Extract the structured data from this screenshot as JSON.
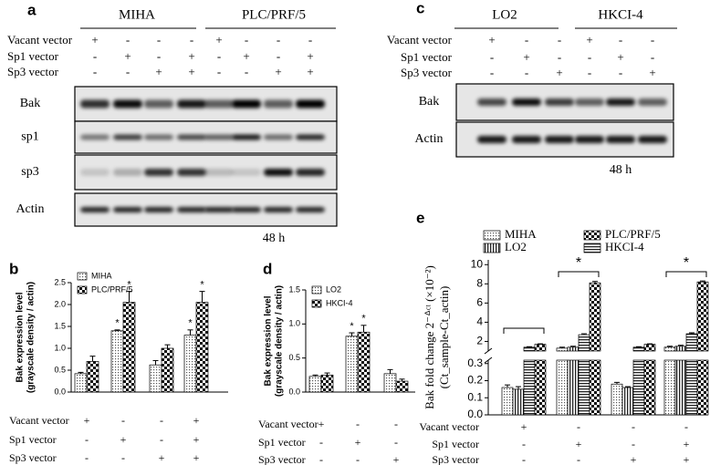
{
  "panels": [
    "a",
    "b",
    "c",
    "d",
    "e"
  ],
  "blot_a": {
    "groups": [
      "MIHA",
      "PLC/PRF/5"
    ],
    "rows": [
      "Vacant vector",
      "Sp1 vector",
      "Sp3 vector"
    ],
    "signs": [
      [
        "+",
        "-",
        "-",
        "-",
        "+",
        "-",
        "-",
        "-"
      ],
      [
        "-",
        "+",
        "-",
        "+",
        "-",
        "+",
        "-",
        "+"
      ],
      [
        "-",
        "-",
        "+",
        "+",
        "-",
        "-",
        "+",
        "+"
      ]
    ],
    "bands": [
      "Bak",
      "sp1",
      "sp3",
      "Actin"
    ],
    "time": "48 h"
  },
  "blot_c": {
    "groups": [
      "LO2",
      "HKCI-4"
    ],
    "rows": [
      "Vacant vector",
      "Sp1 vector",
      "Sp3 vector"
    ],
    "signs": [
      [
        "+",
        "-",
        "-",
        "+",
        "-",
        "-"
      ],
      [
        "-",
        "+",
        "-",
        "-",
        "+",
        "-"
      ],
      [
        "-",
        "-",
        "+",
        "-",
        "-",
        "+"
      ]
    ],
    "bands": [
      "Bak",
      "Actin"
    ],
    "time": "48 h"
  },
  "chart_data": [
    {
      "type": "bar",
      "ylabel": [
        "Bak expression level",
        "(grayscale density / actin)"
      ],
      "rows": [
        "Vacant vector",
        "Sp1 vector",
        "Sp3 vector"
      ],
      "conditions": [
        [
          "+",
          "-",
          "-",
          "+"
        ],
        [
          "-",
          "+",
          "-",
          "+"
        ],
        [
          "-",
          "-",
          "+",
          "+"
        ]
      ],
      "ylim": [
        0,
        2.5
      ],
      "yticks": [
        {
          "value": 0,
          "label": "0.0"
        },
        0.5,
        {
          "value": 1,
          "label": "1.0"
        },
        1.5,
        {
          "value": 2,
          "label": "2.0"
        },
        2.5
      ],
      "series": [
        {
          "name": "MIHA",
          "pattern": "dots",
          "values": [
            0.42,
            1.4,
            0.62,
            1.3
          ],
          "errors": [
            0.03,
            0.02,
            0.1,
            0.12
          ],
          "significance": [
            null,
            "*",
            null,
            "*"
          ]
        },
        {
          "name": "PLC/PRF/5",
          "pattern": "checker",
          "values": [
            0.7,
            2.05,
            1.0,
            2.05
          ],
          "errors": [
            0.12,
            0.25,
            0.08,
            0.25
          ],
          "significance": [
            null,
            "*",
            null,
            "*"
          ]
        }
      ]
    },
    {
      "type": "bar",
      "ylabel": [
        "Bak expression level",
        "(grayscale density / actin)"
      ],
      "rows": [
        "Vacant vector",
        "Sp1 vector",
        "Sp3 vector"
      ],
      "conditions": [
        [
          "+",
          "-",
          "-"
        ],
        [
          "-",
          "+",
          "-"
        ],
        [
          "-",
          "-",
          "+"
        ]
      ],
      "ylim": [
        0,
        1.5
      ],
      "yticks": [
        {
          "value": 0,
          "label": "0.0"
        },
        0.5,
        {
          "value": 1,
          "label": "1.0"
        },
        1.5
      ],
      "series": [
        {
          "name": "LO2",
          "pattern": "dots",
          "values": [
            0.23,
            0.82,
            0.27
          ],
          "errors": [
            0.02,
            0.05,
            0.06
          ],
          "significance": [
            null,
            "*",
            null
          ]
        },
        {
          "name": "HKCI-4",
          "pattern": "checker",
          "values": [
            0.25,
            0.88,
            0.16
          ],
          "errors": [
            0.03,
            0.1,
            0.03
          ],
          "significance": [
            null,
            "*",
            null
          ]
        }
      ]
    },
    {
      "type": "broken-bar",
      "ylabel": [
        "Bak fold change 2⁻ᐞᶜᵗ (×10⁻²)",
        "(Ct_sample-Ct_actin)"
      ],
      "rows": [
        "Vacant vector",
        "Sp1 vector",
        "Sp3 vector"
      ],
      "conditions": [
        [
          "+",
          "-",
          "-",
          "-"
        ],
        [
          "-",
          "+",
          "-",
          "+"
        ],
        [
          "-",
          "-",
          "+",
          "+"
        ]
      ],
      "ylim": [
        0,
        0.32
      ],
      "yticks": [
        {
          "value": 0,
          "label": "0.0"
        },
        0.1,
        0.2,
        0.3
      ],
      "y_break": {
        "ylim": [
          1,
          10.5
        ],
        "yticks": [
          2,
          4,
          6,
          8,
          10
        ]
      },
      "significance": [
        null,
        "*",
        null,
        "*"
      ],
      "series": [
        {
          "name": "MIHA",
          "pattern": "dots",
          "values": [
            0.16,
            1.3,
            0.18,
            1.4
          ],
          "errors": [
            0.015,
            0.1,
            0.01,
            0.1
          ]
        },
        {
          "name": "LO2",
          "pattern": "vstripe",
          "values": [
            0.15,
            1.4,
            0.16,
            1.5
          ],
          "errors": [
            0.015,
            0.1,
            0.005,
            0.1
          ]
        },
        {
          "name": "HKCI-4",
          "pattern": "hstripe",
          "values": [
            1.4,
            2.7,
            1.4,
            2.8
          ],
          "errors": [
            0.05,
            0.1,
            0.05,
            0.1
          ]
        },
        {
          "name": "PLC/PRF/5",
          "pattern": "checker",
          "values": [
            1.7,
            8.1,
            1.7,
            8.2
          ],
          "errors": [
            0.05,
            0.15,
            0.05,
            0.1
          ]
        }
      ]
    }
  ]
}
